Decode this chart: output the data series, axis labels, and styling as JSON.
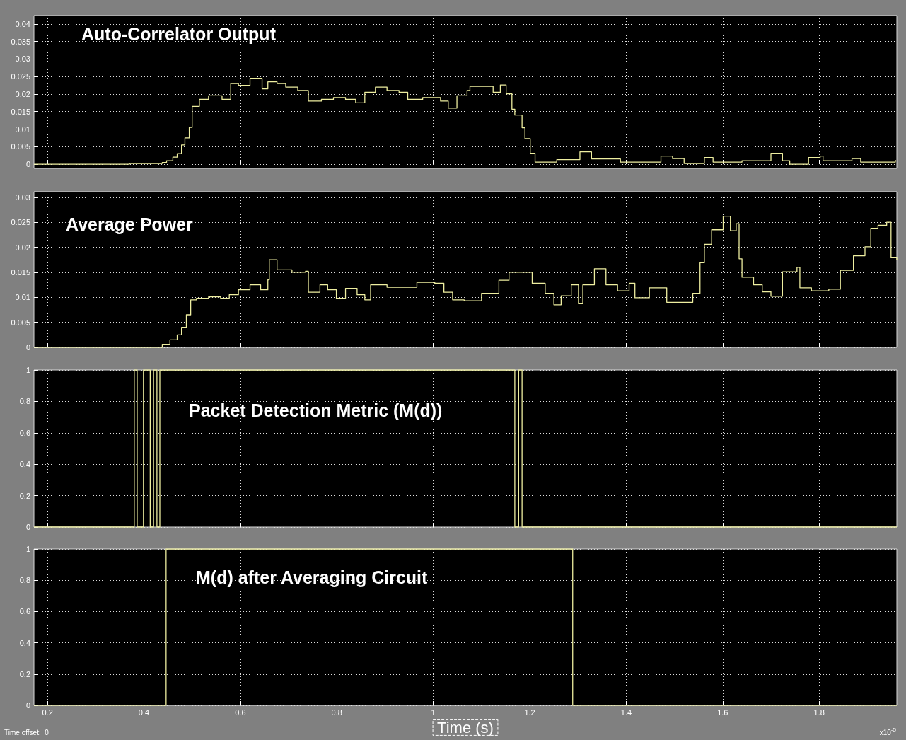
{
  "chart_data": [
    {
      "type": "step",
      "title": "Auto-Correlator Output",
      "x": [
        0.172,
        0.37,
        0.438,
        0.447,
        0.46,
        0.469,
        0.478,
        0.485,
        0.494,
        0.5,
        0.515,
        0.534,
        0.562,
        0.58,
        0.596,
        0.62,
        0.645,
        0.657,
        0.676,
        0.694,
        0.719,
        0.741,
        0.768,
        0.793,
        0.818,
        0.839,
        0.858,
        0.88,
        0.904,
        0.929,
        0.947,
        0.978,
        1.015,
        1.031,
        1.049,
        1.07,
        1.076,
        1.124,
        1.139,
        1.151,
        1.163,
        1.169,
        1.184,
        1.19,
        1.201,
        1.211,
        1.256,
        1.304,
        1.328,
        1.388,
        1.472,
        1.496,
        1.52,
        1.562,
        1.58,
        1.64,
        1.7,
        1.724,
        1.739,
        1.778,
        1.802,
        1.808,
        1.868,
        1.886,
        1.94,
        1.958
      ],
      "series": [
        {
          "color": "#eeeea0",
          "values": [
            0,
            0.0002,
            0.0005,
            0.001,
            0.002,
            0.003,
            0.0055,
            0.0075,
            0.0105,
            0.0165,
            0.0185,
            0.0195,
            0.0185,
            0.023,
            0.0225,
            0.0245,
            0.0215,
            0.0235,
            0.023,
            0.022,
            0.021,
            0.018,
            0.0185,
            0.019,
            0.0185,
            0.0175,
            0.0205,
            0.022,
            0.021,
            0.0205,
            0.0185,
            0.019,
            0.018,
            0.016,
            0.0195,
            0.021,
            0.0222,
            0.0205,
            0.0226,
            0.0201,
            0.0157,
            0.014,
            0.0104,
            0.0073,
            0.0031,
            0.0006,
            0.0013,
            0.0035,
            0.0015,
            0.0006,
            0.0023,
            0.0016,
            0.0002,
            0.0019,
            0.0006,
            0.001,
            0.0031,
            0.001,
            0,
            0.0019,
            0.0023,
            0.001,
            0.0016,
            0.0006,
            0.0006,
            0.0012
          ]
        }
      ],
      "xlim": [
        0.172,
        1.961
      ],
      "xticks": [
        0.2,
        0.4,
        0.6,
        0.8,
        1,
        1.2,
        1.4,
        1.6,
        1.8
      ],
      "ylim": [
        -0.0012,
        0.0424
      ],
      "yticks": [
        0,
        0.005,
        0.01,
        0.015,
        0.02,
        0.025,
        0.03,
        0.035,
        0.04
      ],
      "grid": true,
      "tick_labels": "y",
      "marker": "none",
      "line_style": "solid"
    },
    {
      "type": "step",
      "title": "Average Power",
      "x": [
        0.172,
        0.438,
        0.454,
        0.469,
        0.478,
        0.488,
        0.497,
        0.509,
        0.534,
        0.559,
        0.577,
        0.596,
        0.62,
        0.642,
        0.657,
        0.66,
        0.676,
        0.707,
        0.735,
        0.741,
        0.765,
        0.781,
        0.799,
        0.818,
        0.842,
        0.858,
        0.87,
        0.904,
        0.966,
        1.003,
        1.022,
        1.04,
        1.064,
        1.1,
        1.136,
        1.157,
        1.205,
        1.232,
        1.25,
        1.265,
        1.286,
        1.301,
        1.31,
        1.334,
        1.358,
        1.382,
        1.406,
        1.418,
        1.448,
        1.484,
        1.52,
        1.538,
        1.553,
        1.562,
        1.577,
        1.601,
        1.616,
        1.628,
        1.634,
        1.64,
        1.664,
        1.682,
        1.7,
        1.724,
        1.754,
        1.76,
        1.784,
        1.82,
        1.844,
        1.871,
        1.895,
        1.907,
        1.922,
        1.94,
        1.949,
        1.961
      ],
      "series": [
        {
          "color": "#eeeea0",
          "values": [
            0,
            0.0006,
            0.0015,
            0.0025,
            0.004,
            0.0065,
            0.0095,
            0.0098,
            0.0101,
            0.0098,
            0.0105,
            0.0115,
            0.0125,
            0.0115,
            0.0135,
            0.0175,
            0.0155,
            0.015,
            0.0152,
            0.011,
            0.0125,
            0.0115,
            0.0098,
            0.0118,
            0.0105,
            0.0095,
            0.0125,
            0.012,
            0.013,
            0.0128,
            0.011,
            0.0095,
            0.0093,
            0.0108,
            0.0134,
            0.015,
            0.0128,
            0.0108,
            0.0085,
            0.0103,
            0.0125,
            0.0087,
            0.0125,
            0.0157,
            0.0125,
            0.0113,
            0.0128,
            0.0099,
            0.0119,
            0.009,
            0.009,
            0.0108,
            0.0169,
            0.0206,
            0.0235,
            0.0262,
            0.0233,
            0.0247,
            0.0177,
            0.014,
            0.0125,
            0.0111,
            0.0102,
            0.0151,
            0.016,
            0.0119,
            0.0113,
            0.0116,
            0.0154,
            0.0183,
            0.0201,
            0.0238,
            0.0244,
            0.025,
            0.018,
            0.0175
          ]
        }
      ],
      "xlim": [
        0.172,
        1.961
      ],
      "xticks": [
        0.2,
        0.4,
        0.6,
        0.8,
        1,
        1.2,
        1.4,
        1.6,
        1.8
      ],
      "ylim": [
        0,
        0.0311
      ],
      "yticks": [
        0,
        0.005,
        0.01,
        0.015,
        0.02,
        0.025,
        0.03
      ],
      "grid": true,
      "tick_labels": "y",
      "marker": "none",
      "line_style": "solid"
    },
    {
      "type": "step",
      "title": "Packet Detection Metric (M(d))",
      "x": [
        0.172,
        0.38,
        0.386,
        0.399,
        0.413,
        0.42,
        0.427,
        0.433,
        1.169,
        1.177,
        1.184,
        1.961
      ],
      "series": [
        {
          "color": "#eeeea0",
          "values": [
            0,
            1,
            0,
            1,
            0,
            1,
            0,
            1,
            0,
            1,
            0,
            0
          ]
        }
      ],
      "xlim": [
        0.172,
        1.961
      ],
      "xticks": [
        0.2,
        0.4,
        0.6,
        0.8,
        1,
        1.2,
        1.4,
        1.6,
        1.8
      ],
      "ylim": [
        0,
        1
      ],
      "yticks": [
        0,
        0.2,
        0.4,
        0.6,
        0.8,
        1
      ],
      "grid": true,
      "tick_labels": "y",
      "marker": "none",
      "line_style": "solid"
    },
    {
      "type": "step",
      "title": "M(d) after Averaging Circuit",
      "xlabel": "Time (s)",
      "annotations": [
        "x10$^{-5}$",
        "Time offset:  0"
      ],
      "x": [
        0.172,
        0.446,
        1.289,
        1.961
      ],
      "series": [
        {
          "color": "#eeeea0",
          "values": [
            0,
            1,
            0,
            0
          ]
        }
      ],
      "xlim": [
        0.172,
        1.961
      ],
      "xticks": [
        0.2,
        0.4,
        0.6,
        0.8,
        1,
        1.2,
        1.4,
        1.6,
        1.8
      ],
      "ylim": [
        0,
        1
      ],
      "yticks": [
        0,
        0.2,
        0.4,
        0.6,
        0.8,
        1
      ],
      "grid": true,
      "marker": "none",
      "line_style": "solid"
    }
  ]
}
